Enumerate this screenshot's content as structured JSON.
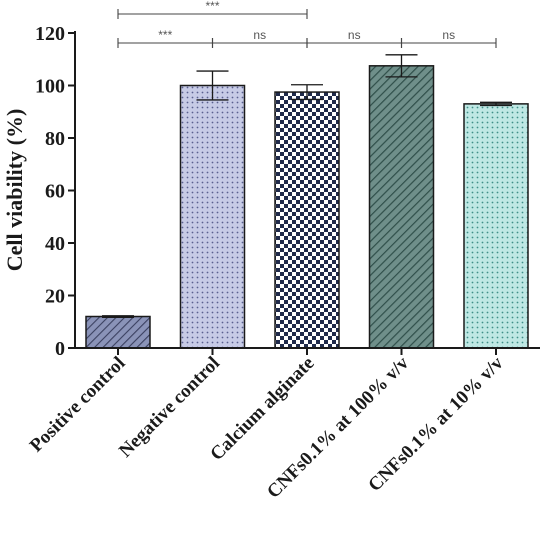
{
  "chart_data": {
    "type": "bar",
    "ylabel": "Cell viability (%)",
    "ylim": [
      0,
      120
    ],
    "yticks": [
      0,
      20,
      40,
      60,
      80,
      100,
      120
    ],
    "categories": [
      "Positive control",
      "Negative control",
      "Calcium alginate",
      "CNFs0.1% at 100% v/v",
      "CNFs0.1% at 10% v/v"
    ],
    "values": [
      12,
      100,
      97.5,
      107.5,
      93
    ],
    "errors": [
      0.3,
      5.5,
      2.8,
      4.2,
      0.6
    ],
    "bar_styles": [
      {
        "pattern": "diagonal-hatch",
        "fill": "#8a93b8",
        "stroke": "#3a4060"
      },
      {
        "pattern": "dots",
        "fill": "#c7cbe6",
        "stroke": "#5a6090"
      },
      {
        "pattern": "checker",
        "fill": "#ffffff",
        "stroke": "#1f2a4a"
      },
      {
        "pattern": "diagonal-hatch",
        "fill": "#6f8f8a",
        "stroke": "#2f4f4a"
      },
      {
        "pattern": "dots",
        "fill": "#bfe8e4",
        "stroke": "#3f8f88"
      }
    ],
    "significance": [
      {
        "from": 0,
        "to": 2,
        "label": "***"
      },
      {
        "from": 0,
        "to": 1,
        "label": "***"
      },
      {
        "from": 1,
        "to": 2,
        "label": "ns"
      },
      {
        "from": 2,
        "to": 3,
        "label": "ns"
      },
      {
        "from": 3,
        "to": 4,
        "label": "ns"
      }
    ]
  }
}
